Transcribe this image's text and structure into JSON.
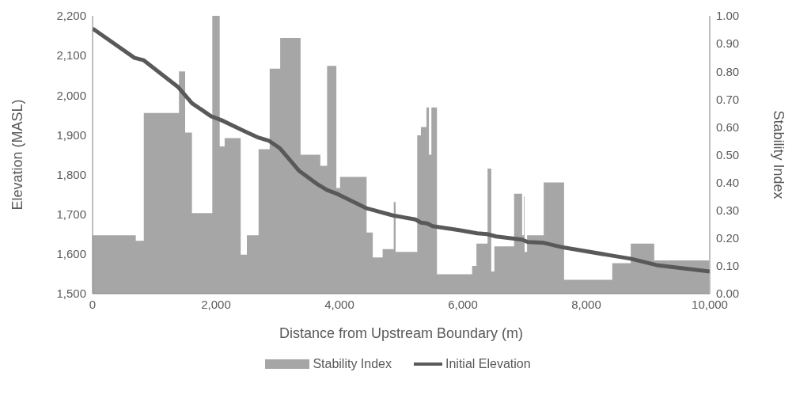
{
  "chart_data": {
    "type": "line",
    "xlabel": "Distance from Upstream Boundary (m)",
    "ylabel": "Elevation (MASL)",
    "y2label": "Stability Index",
    "xlim": [
      0,
      10000
    ],
    "xticks": [
      0,
      {
        "value": 2000,
        "label": "2,000"
      },
      {
        "value": 4000,
        "label": "4,000"
      },
      {
        "value": 6000,
        "label": "6,000"
      },
      {
        "value": 8000,
        "label": "8,000"
      },
      {
        "value": 10000,
        "label": "10,000"
      }
    ],
    "ylim": [
      1500,
      2200
    ],
    "yticks": [
      {
        "value": 1500,
        "label": "1,500"
      },
      {
        "value": 1600,
        "label": "1,600"
      },
      {
        "value": 1700,
        "label": "1,700"
      },
      {
        "value": 1800,
        "label": "1,800"
      },
      {
        "value": 1900,
        "label": "1,900"
      },
      {
        "value": 2000,
        "label": "2,000"
      },
      {
        "value": 2100,
        "label": "2,100"
      },
      {
        "value": 2200,
        "label": "2,200"
      }
    ],
    "y2lim": [
      0,
      1
    ],
    "y2ticks": [
      {
        "value": 0,
        "label": "0.00"
      },
      {
        "value": 0.1,
        "label": "0.10"
      },
      {
        "value": 0.2,
        "label": "0.20"
      },
      {
        "value": 0.3,
        "label": "0.30"
      },
      {
        "value": 0.4,
        "label": "0.40"
      },
      {
        "value": 0.5,
        "label": "0.50"
      },
      {
        "value": 0.6,
        "label": "0.60"
      },
      {
        "value": 0.7,
        "label": "0.70"
      },
      {
        "value": 0.8,
        "label": "0.80"
      },
      {
        "value": 0.9,
        "label": "0.90"
      },
      {
        "value": 1,
        "label": "1.00"
      }
    ],
    "grid": false,
    "legend": "bottom",
    "marker": "none",
    "series": [
      {
        "name": "Stability Index",
        "type": "area",
        "axis": "y2",
        "color": "#a6a6a6",
        "x": [
          0,
          700,
          700,
          830,
          830,
          1400,
          1400,
          1500,
          1500,
          1610,
          1610,
          1940,
          1940,
          2060,
          2060,
          2140,
          2140,
          2400,
          2400,
          2500,
          2500,
          2690,
          2690,
          2870,
          2870,
          3040,
          3040,
          3370,
          3370,
          3690,
          3690,
          3800,
          3800,
          3950,
          3950,
          4010,
          4010,
          4440,
          4440,
          4540,
          4540,
          4700,
          4700,
          4880,
          4880,
          4910,
          4910,
          5260,
          5260,
          5320,
          5320,
          5410,
          5410,
          5450,
          5450,
          5490,
          5490,
          5580,
          5580,
          6150,
          6150,
          6220,
          6220,
          6400,
          6400,
          6460,
          6460,
          6510,
          6510,
          6830,
          6830,
          6960,
          6960,
          6990,
          6990,
          7000,
          7000,
          7040,
          7040,
          7310,
          7310,
          7640,
          7640,
          8420,
          8420,
          8720,
          8720,
          9100,
          9100,
          9990
        ],
        "values": [
          0.21,
          0.21,
          0.19,
          0.19,
          0.65,
          0.65,
          0.8,
          0.8,
          0.58,
          0.58,
          0.29,
          0.29,
          1,
          1,
          0.53,
          0.53,
          0.56,
          0.56,
          0.14,
          0.14,
          0.21,
          0.21,
          0.52,
          0.52,
          0.81,
          0.81,
          0.92,
          0.92,
          0.5,
          0.5,
          0.46,
          0.46,
          0.82,
          0.82,
          0.38,
          0.38,
          0.42,
          0.42,
          0.22,
          0.22,
          0.13,
          0.13,
          0.16,
          0.16,
          0.33,
          0.33,
          0.15,
          0.15,
          0.57,
          0.57,
          0.6,
          0.6,
          0.67,
          0.67,
          0.5,
          0.5,
          0.67,
          0.67,
          0.07,
          0.07,
          0.1,
          0.1,
          0.18,
          0.18,
          0.45,
          0.45,
          0.08,
          0.08,
          0.17,
          0.17,
          0.36,
          0.36,
          0.21,
          0.21,
          0.35,
          0.35,
          0.15,
          0.15,
          0.21,
          0.21,
          0.4,
          0.4,
          0.05,
          0.05,
          0.11,
          0.11,
          0.18,
          0.18,
          0.12,
          0.12
        ]
      },
      {
        "name": "Initial Elevation",
        "type": "line",
        "color": "#595959",
        "x": [
          0,
          680,
          830,
          1390,
          1610,
          1920,
          2090,
          2440,
          2690,
          2860,
          3030,
          3350,
          3630,
          3800,
          3970,
          4440,
          4870,
          5230,
          5320,
          5420,
          5510,
          5940,
          6230,
          6390,
          6540,
          6960,
          7050,
          7310,
          7640,
          8410,
          8720,
          9140,
          10000
        ],
        "values": [
          2168,
          2094,
          2088,
          2020,
          1980,
          1947,
          1937,
          1911,
          1893,
          1885,
          1867,
          1809,
          1777,
          1761,
          1751,
          1715,
          1697,
          1687,
          1679,
          1677,
          1670,
          1660,
          1652,
          1650,
          1644,
          1636,
          1630,
          1628,
          1616,
          1596,
          1588,
          1572,
          1556
        ]
      }
    ]
  }
}
